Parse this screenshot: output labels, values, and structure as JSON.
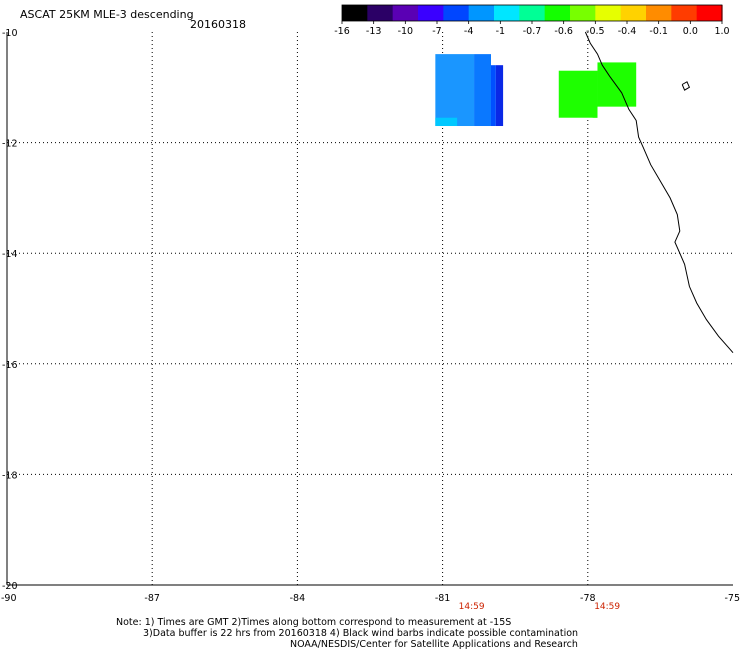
{
  "header": {
    "title": "ASCAT 25KM MLE-3 descending",
    "date": "20160318"
  },
  "colorbar": {
    "labels": [
      "-16",
      "-13",
      "-10",
      "-7",
      "-4",
      "-1",
      "-0.7",
      "-0.6",
      "-0.5",
      "-0.4",
      "-0.1",
      "0.0",
      "1.0"
    ],
    "colors": [
      "#000000",
      "#2b0066",
      "#5a00b4",
      "#3a00ff",
      "#0046ff",
      "#0096ff",
      "#00e6ff",
      "#00ff96",
      "#14ff00",
      "#78ff00",
      "#e6ff00",
      "#ffd200",
      "#ff8c00",
      "#ff3c00",
      "#ff0000"
    ]
  },
  "map": {
    "lon_range": [
      -90,
      -75
    ],
    "lat_range": [
      -20,
      -10
    ],
    "lon_ticks": [
      "-90",
      "-87",
      "-84",
      "-81",
      "-78",
      "-75"
    ],
    "lat_ticks": [
      "-10",
      "-12",
      "-14",
      "-16",
      "-18",
      "-20"
    ],
    "time_labels": [
      {
        "text": "14:59",
        "lon": -80.4
      },
      {
        "text": "14:59",
        "lon": -77.6
      }
    ],
    "time_color": "#cc2200",
    "cells": [
      {
        "lon0": -81.15,
        "lat0": -10.4,
        "lon1": -80.35,
        "lat1": -11.7,
        "color": "#1a96ff"
      },
      {
        "lon0": -80.35,
        "lat0": -10.4,
        "lon1": -80.0,
        "lat1": -11.7,
        "color": "#0a78ff"
      },
      {
        "lon0": -80.0,
        "lat0": -10.6,
        "lon1": -79.9,
        "lat1": -11.7,
        "color": "#0050ff"
      },
      {
        "lon0": -79.9,
        "lat0": -10.6,
        "lon1": -79.75,
        "lat1": -11.7,
        "color": "#0a28e6"
      },
      {
        "lon0": -81.15,
        "lat0": -11.55,
        "lon1": -80.7,
        "lat1": -11.7,
        "color": "#00c8ff"
      },
      {
        "lon0": -78.6,
        "lat0": -10.7,
        "lon1": -77.8,
        "lat1": -11.55,
        "color": "#1eff00"
      },
      {
        "lon0": -77.8,
        "lat0": -10.55,
        "lon1": -77.0,
        "lat1": -11.35,
        "color": "#1eff00"
      },
      {
        "lon0": -77.9,
        "lat0": -11.3,
        "lon1": -77.8,
        "lat1": -11.55,
        "color": "#1eff00"
      }
    ],
    "coastline": [
      [
        -78.05,
        -10.0
      ],
      [
        -77.95,
        -10.2
      ],
      [
        -77.8,
        -10.4
      ],
      [
        -77.7,
        -10.6
      ],
      [
        -77.55,
        -10.8
      ],
      [
        -77.3,
        -11.1
      ],
      [
        -77.15,
        -11.4
      ],
      [
        -77.0,
        -11.6
      ],
      [
        -76.95,
        -11.9
      ],
      [
        -76.85,
        -12.1
      ],
      [
        -76.7,
        -12.4
      ],
      [
        -76.5,
        -12.7
      ],
      [
        -76.3,
        -13.0
      ],
      [
        -76.15,
        -13.3
      ],
      [
        -76.1,
        -13.6
      ],
      [
        -76.2,
        -13.8
      ],
      [
        -76.1,
        -14.0
      ],
      [
        -76.0,
        -14.2
      ],
      [
        -75.95,
        -14.4
      ],
      [
        -75.9,
        -14.6
      ],
      [
        -75.75,
        -14.9
      ],
      [
        -75.55,
        -15.2
      ],
      [
        -75.3,
        -15.5
      ],
      [
        -75.1,
        -15.7
      ],
      [
        -75.0,
        -15.8
      ]
    ],
    "island": [
      [
        -76.05,
        -10.95
      ],
      [
        -75.95,
        -10.9
      ],
      [
        -75.9,
        -11.0
      ],
      [
        -76.0,
        -11.05
      ],
      [
        -76.05,
        -10.95
      ]
    ]
  },
  "notes": {
    "line1": "Note: 1) Times are GMT 2)Times along bottom correspond to measurement at -15S",
    "line2": "3)Data buffer is 22 hrs from 20160318 4) Black wind barbs indicate possible contamination",
    "line3": "NOAA/NESDIS/Center for Satellite Applications and Research"
  }
}
